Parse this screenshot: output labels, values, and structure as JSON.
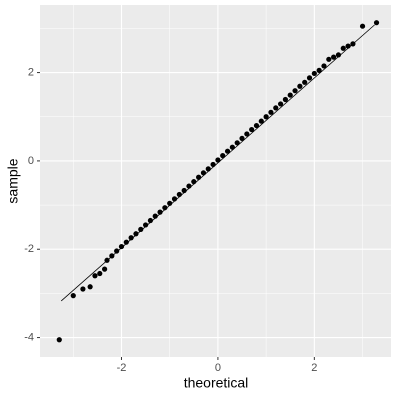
{
  "chart_data": {
    "type": "scatter",
    "x_label": "theoretical",
    "y_label": "sample",
    "x": [
      -3.29,
      -3.0,
      -2.8,
      -2.65,
      -2.55,
      -2.45,
      -2.35,
      -2.3,
      -2.2,
      -2.1,
      -2.0,
      -1.9,
      -1.8,
      -1.7,
      -1.6,
      -1.5,
      -1.4,
      -1.3,
      -1.2,
      -1.1,
      -1.0,
      -0.9,
      -0.8,
      -0.7,
      -0.6,
      -0.5,
      -0.4,
      -0.3,
      -0.2,
      -0.1,
      0,
      0.1,
      0.2,
      0.3,
      0.4,
      0.5,
      0.6,
      0.7,
      0.8,
      0.9,
      1.0,
      1.1,
      1.2,
      1.3,
      1.4,
      1.5,
      1.6,
      1.7,
      1.8,
      1.9,
      2.0,
      2.1,
      2.2,
      2.3,
      2.4,
      2.5,
      2.6,
      2.7,
      2.8,
      3.0,
      3.29
    ],
    "values": [
      -4.05,
      -3.05,
      -2.9,
      -2.85,
      -2.6,
      -2.55,
      -2.45,
      -2.25,
      -2.15,
      -2.04,
      -1.94,
      -1.84,
      -1.74,
      -1.65,
      -1.55,
      -1.45,
      -1.35,
      -1.25,
      -1.16,
      -1.06,
      -0.96,
      -0.86,
      -0.76,
      -0.67,
      -0.57,
      -0.47,
      -0.37,
      -0.27,
      -0.18,
      -0.08,
      0.02,
      0.12,
      0.22,
      0.31,
      0.41,
      0.51,
      0.61,
      0.71,
      0.8,
      0.9,
      1.0,
      1.1,
      1.2,
      1.29,
      1.39,
      1.49,
      1.59,
      1.69,
      1.78,
      1.88,
      1.98,
      2.05,
      2.15,
      2.3,
      2.35,
      2.4,
      2.55,
      2.6,
      2.65,
      3.05,
      3.13
    ],
    "color": "#000000",
    "reference_line": {
      "x": [
        -3.25,
        3.25
      ],
      "y": [
        -3.17,
        3.08
      ]
    },
    "xlim": [
      -3.69,
      3.59
    ],
    "ylim": [
      -4.44,
      3.53
    ],
    "xticks": [
      -2,
      0,
      2
    ],
    "yticks": [
      -4,
      -2,
      0,
      2
    ],
    "minor_xticks": [
      -3,
      -1,
      1,
      3
    ],
    "minor_yticks": [
      -3,
      -1,
      1,
      3
    ],
    "grid": true
  }
}
